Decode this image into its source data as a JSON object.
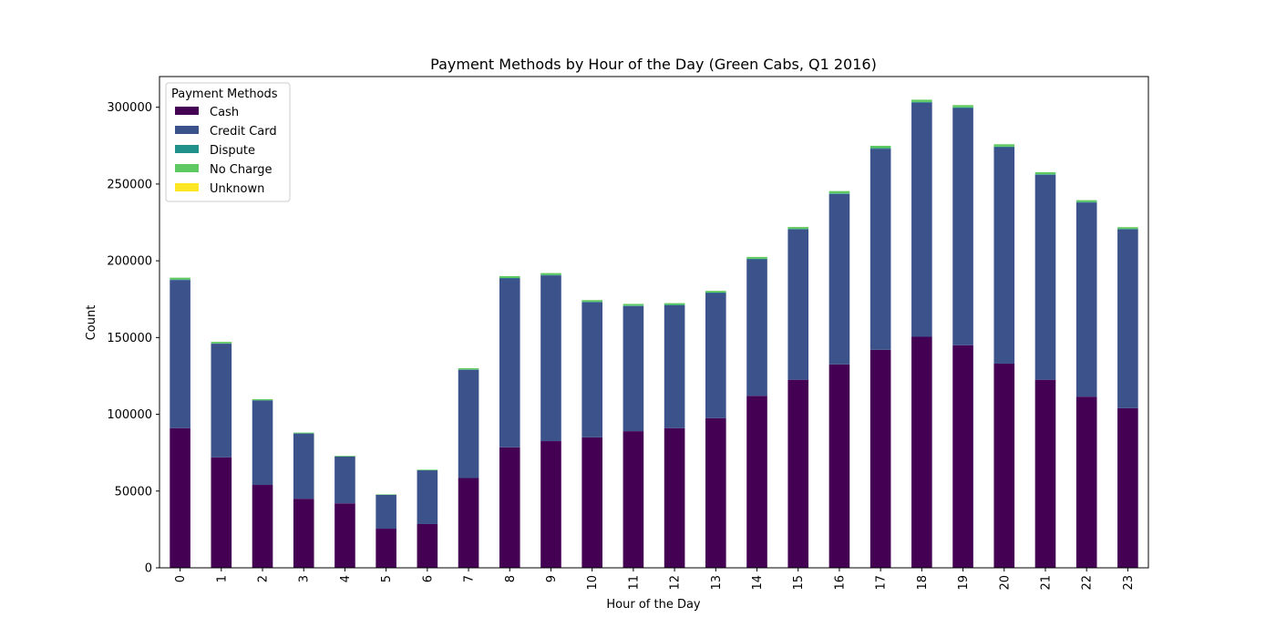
{
  "chart_data": {
    "type": "bar",
    "stacked": true,
    "title": "Payment Methods by Hour of the Day (Green Cabs, Q1 2016)",
    "xlabel": "Hour of the Day",
    "ylabel": "Count",
    "ylim": [
      0,
      320000
    ],
    "yticks": [
      "0",
      "50000",
      "100000",
      "150000",
      "200000",
      "250000",
      "300000"
    ],
    "ytick_values": [
      0,
      50000,
      100000,
      150000,
      200000,
      250000,
      300000
    ],
    "grid": false,
    "legend": {
      "title": "Payment Methods",
      "position": "top-left"
    },
    "categories": [
      "0",
      "1",
      "2",
      "3",
      "4",
      "5",
      "6",
      "7",
      "8",
      "9",
      "10",
      "11",
      "12",
      "13",
      "14",
      "15",
      "16",
      "17",
      "18",
      "19",
      "20",
      "21",
      "22",
      "23"
    ],
    "series": [
      {
        "name": "Cash",
        "color": "#440154",
        "values": [
          91000,
          72000,
          54000,
          45000,
          42000,
          25500,
          28500,
          58500,
          78500,
          82500,
          85000,
          89000,
          91000,
          97500,
          112000,
          122500,
          132500,
          142000,
          150500,
          145000,
          133000,
          122500,
          111500,
          104000
        ]
      },
      {
        "name": "Credit Card",
        "color": "#3b528b",
        "values": [
          96500,
          74000,
          55000,
          42500,
          30500,
          22000,
          35000,
          70500,
          110000,
          108000,
          88000,
          81500,
          80000,
          81500,
          89000,
          98000,
          111000,
          131000,
          152500,
          154500,
          141000,
          133500,
          126500,
          116500
        ]
      },
      {
        "name": "Dispute",
        "color": "#21918c",
        "values": [
          300,
          200,
          150,
          100,
          80,
          60,
          80,
          200,
          300,
          300,
          300,
          300,
          300,
          300,
          300,
          300,
          400,
          400,
          400,
          400,
          400,
          400,
          300,
          300
        ]
      },
      {
        "name": "No Charge",
        "color": "#5ec962",
        "values": [
          1200,
          1000,
          700,
          500,
          400,
          300,
          400,
          800,
          1200,
          1200,
          1100,
          1100,
          1100,
          1100,
          1200,
          1200,
          1500,
          1500,
          1500,
          1500,
          1500,
          1300,
          1200,
          1100
        ]
      },
      {
        "name": "Unknown",
        "color": "#fde725",
        "values": [
          20,
          20,
          10,
          10,
          10,
          5,
          5,
          10,
          20,
          20,
          20,
          20,
          20,
          20,
          20,
          20,
          20,
          20,
          20,
          20,
          20,
          20,
          20,
          20
        ]
      }
    ]
  }
}
